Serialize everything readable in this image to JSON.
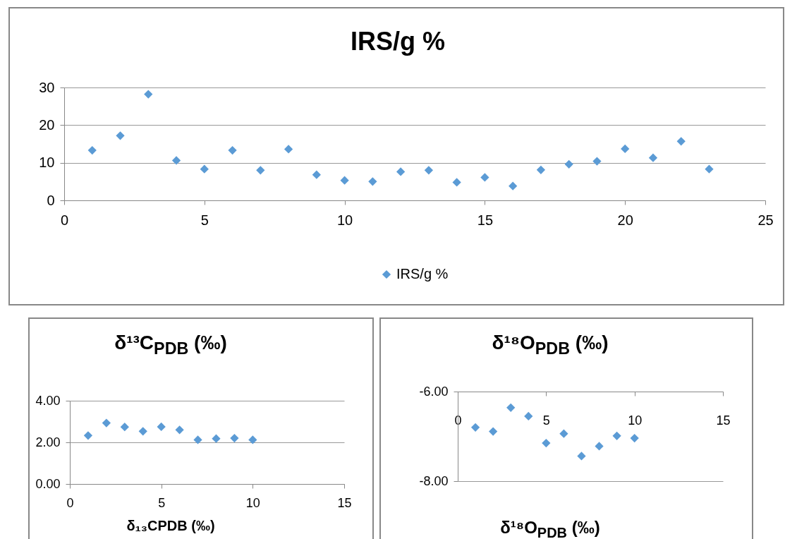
{
  "chart_data": [
    {
      "type": "scatter",
      "title": "IRS/g %",
      "x": [
        1,
        2,
        3,
        4,
        5,
        6,
        7,
        8,
        9,
        10,
        11,
        12,
        13,
        14,
        15,
        16,
        17,
        18,
        19,
        20,
        21,
        22,
        23
      ],
      "series": [
        {
          "name": "IRS/g %",
          "color": "#5b9bd5",
          "values": [
            13.3,
            17.2,
            28.2,
            10.6,
            8.3,
            13.3,
            8.0,
            13.6,
            6.8,
            5.3,
            5.0,
            7.6,
            8.0,
            4.8,
            6.1,
            3.8,
            8.1,
            9.6,
            10.4,
            13.7,
            11.3,
            15.7,
            8.3
          ]
        }
      ],
      "xlim": [
        0,
        25
      ],
      "xticks": [
        0,
        5,
        10,
        15,
        20,
        25
      ],
      "ylim": [
        0,
        30
      ],
      "yticks": [
        0,
        10,
        20,
        30
      ],
      "grid": "y",
      "marker": "diamond",
      "legend": "bottom"
    },
    {
      "type": "scatter",
      "title": "δ¹³C$_{PDB}$ (‰)",
      "xlabel": "δ₁₃CPDB (‰)",
      "x": [
        1,
        2,
        3,
        4,
        5,
        6,
        7,
        8,
        9,
        10
      ],
      "color": "#5b9bd5",
      "values": [
        2.33,
        2.93,
        2.74,
        2.53,
        2.75,
        2.6,
        2.12,
        2.18,
        2.2,
        2.12
      ],
      "xlim": [
        0,
        15
      ],
      "xticks": [
        0,
        5,
        10,
        15
      ],
      "ylim": [
        0,
        4
      ],
      "yticks": [
        {
          "value": 0,
          "label": "0.00"
        },
        {
          "value": 2,
          "label": "2.00"
        },
        {
          "value": 4,
          "label": "4.00"
        }
      ],
      "grid": "y",
      "marker": "diamond"
    },
    {
      "type": "scatter",
      "title": "δ¹⁸O$_{PDB}$ (‰)",
      "xlabel": "δ¹⁸O$_{PDB}$ (‰)",
      "x": [
        1,
        2,
        3,
        4,
        5,
        6,
        7,
        8,
        9,
        10
      ],
      "color": "#5b9bd5",
      "values": [
        -6.8,
        -6.89,
        -6.36,
        -6.55,
        -7.15,
        -6.94,
        -7.44,
        -7.22,
        -6.99,
        -7.04
      ],
      "xlim": [
        0,
        15
      ],
      "xticks": [
        0,
        5,
        10,
        15
      ],
      "ylim": [
        -8,
        -6
      ],
      "yticks": [
        {
          "value": -8,
          "label": "-8.00"
        },
        {
          "value": -6,
          "label": "-6.00"
        }
      ],
      "grid": "y",
      "marker": "diamond"
    }
  ]
}
